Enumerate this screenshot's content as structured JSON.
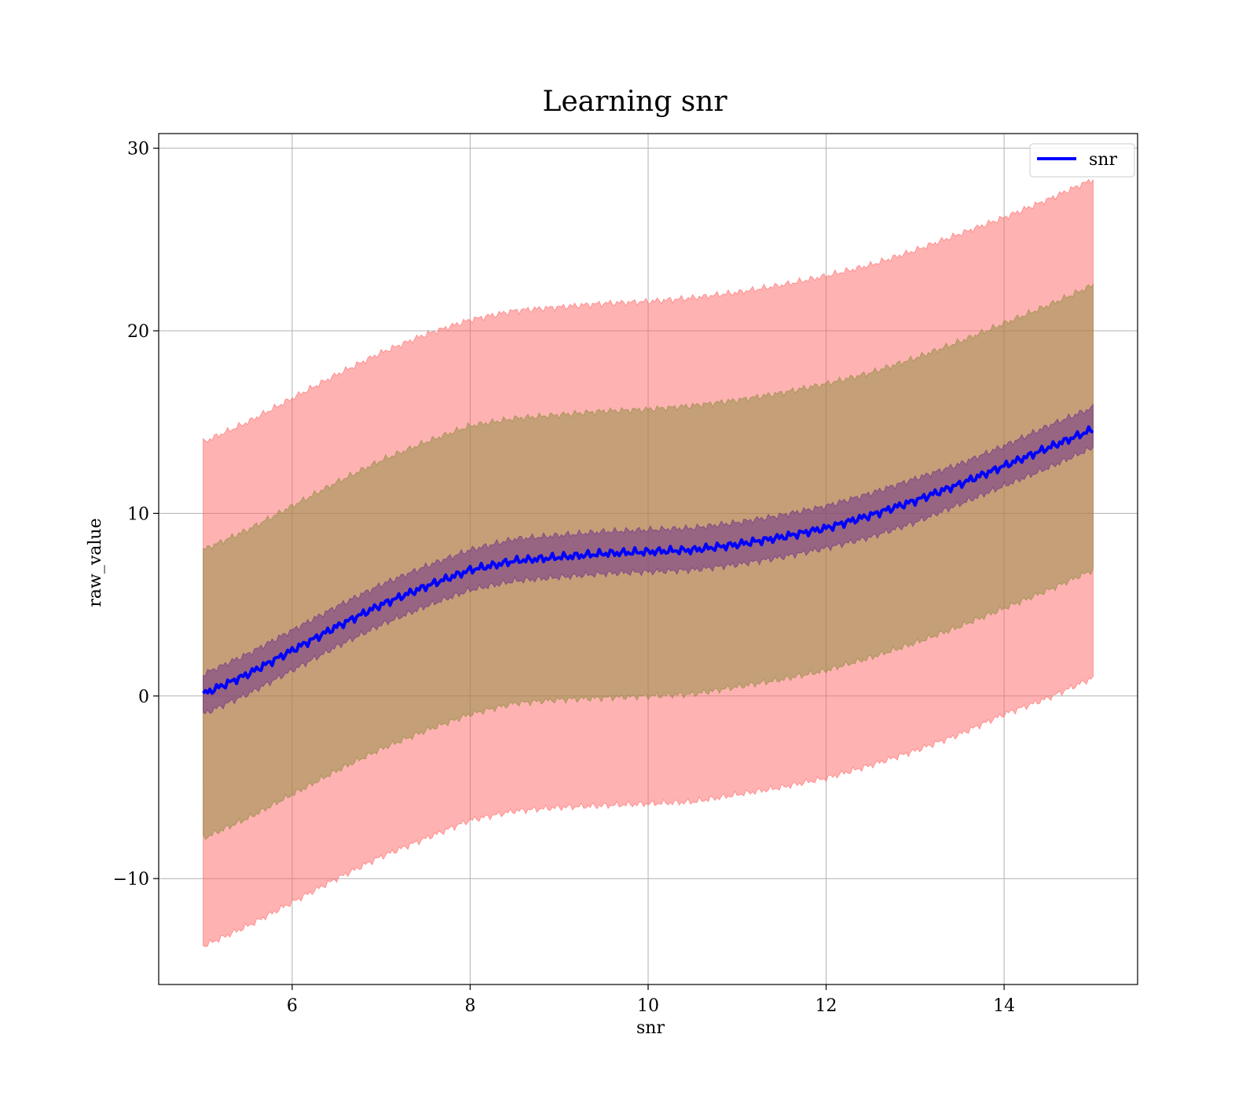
{
  "chart_data": {
    "type": "line",
    "title": "Learning snr",
    "xlabel": "snr",
    "ylabel": "raw_value",
    "xlim": [
      4.5,
      15.5
    ],
    "ylim": [
      -15.8,
      30.8
    ],
    "grid": true,
    "legend_position": "top-right",
    "x_ticks": [
      6,
      8,
      10,
      12,
      14
    ],
    "x_tick_labels": [
      "6",
      "8",
      "10",
      "12",
      "14"
    ],
    "y_ticks": [
      -10,
      0,
      10,
      20,
      30
    ],
    "y_tick_labels": [
      "−10",
      "0",
      "10",
      "20",
      "30"
    ],
    "x": [
      5.0,
      5.5,
      6.0,
      6.5,
      7.0,
      7.5,
      8.0,
      8.5,
      9.0,
      9.5,
      10.0,
      10.5,
      11.0,
      11.5,
      12.0,
      12.5,
      13.0,
      13.5,
      14.0,
      14.5,
      15.0
    ],
    "series": [
      {
        "name": "snr",
        "color": "#0000ff",
        "values": [
          0.1,
          1.2,
          2.5,
          3.8,
          5.0,
          6.0,
          6.9,
          7.4,
          7.6,
          7.8,
          7.9,
          8.0,
          8.3,
          8.7,
          9.2,
          9.9,
          10.7,
          11.6,
          12.6,
          13.6,
          14.6
        ]
      }
    ],
    "bands": [
      {
        "color": "#ff6666",
        "lower": [
          -13.7,
          -12.6,
          -11.3,
          -10.0,
          -8.8,
          -7.8,
          -6.8,
          -6.3,
          -6.1,
          -6.0,
          -5.9,
          -5.8,
          -5.4,
          -5.0,
          -4.5,
          -3.8,
          -3.0,
          -2.1,
          -1.0,
          -0.1,
          1.0
        ],
        "upper": [
          13.9,
          15.0,
          16.3,
          17.6,
          18.8,
          19.8,
          20.6,
          21.1,
          21.3,
          21.5,
          21.6,
          21.8,
          22.1,
          22.5,
          23.0,
          23.6,
          24.4,
          25.3,
          26.2,
          27.2,
          28.3
        ]
      },
      {
        "color": "#8c8c3c",
        "lower": [
          -7.8,
          -6.7,
          -5.4,
          -4.1,
          -2.9,
          -1.9,
          -1.0,
          -0.4,
          -0.2,
          -0.1,
          0.0,
          0.1,
          0.5,
          0.9,
          1.4,
          2.1,
          2.9,
          3.8,
          4.8,
          5.8,
          6.9
        ],
        "upper": [
          8.0,
          9.1,
          10.4,
          11.7,
          12.9,
          13.9,
          14.8,
          15.2,
          15.4,
          15.6,
          15.7,
          15.9,
          16.2,
          16.6,
          17.1,
          17.7,
          18.5,
          19.4,
          20.4,
          21.4,
          22.5
        ]
      },
      {
        "color": "#6a2c8c",
        "lower": [
          -1.0,
          0.1,
          1.4,
          2.7,
          3.9,
          4.9,
          5.8,
          6.3,
          6.5,
          6.7,
          6.8,
          6.9,
          7.2,
          7.6,
          8.1,
          8.7,
          9.5,
          10.5,
          11.5,
          12.5,
          13.6
        ],
        "upper": [
          1.2,
          2.3,
          3.6,
          4.9,
          6.1,
          7.1,
          8.0,
          8.6,
          8.8,
          9.0,
          9.1,
          9.2,
          9.5,
          9.9,
          10.4,
          11.1,
          11.9,
          12.7,
          13.7,
          14.8,
          15.8
        ]
      }
    ]
  }
}
